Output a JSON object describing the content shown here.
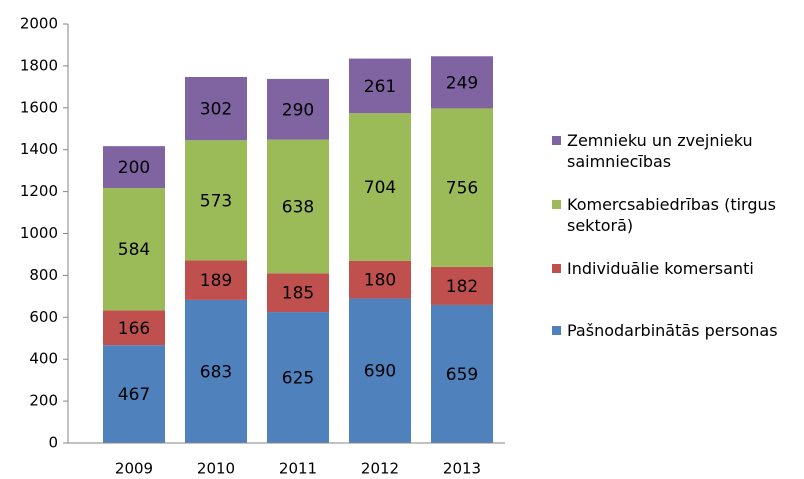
{
  "chart_data": {
    "type": "stacked_bar",
    "categories": [
      "2009",
      "2010",
      "2011",
      "2012",
      "2013"
    ],
    "series": [
      {
        "name": "Pašnodarbinātās personas",
        "color": "#4f81bd",
        "values": [
          467,
          683,
          625,
          690,
          659
        ]
      },
      {
        "name": "Individuālie komersanti",
        "color": "#c0504d",
        "values": [
          166,
          189,
          185,
          180,
          182
        ]
      },
      {
        "name": "Komercsabiedrības (tirgus sektorā)",
        "color": "#9bbb59",
        "values": [
          584,
          573,
          638,
          704,
          756
        ]
      },
      {
        "name": "Zemnieku un zvejnieku saimniecības",
        "color": "#8064a2",
        "values": [
          200,
          302,
          290,
          261,
          249
        ]
      }
    ],
    "ylim": [
      0,
      2000
    ],
    "yticks": [
      0,
      200,
      400,
      600,
      800,
      1000,
      1200,
      1400,
      1600,
      1800,
      2000
    ],
    "grid": false,
    "legend": "right"
  }
}
